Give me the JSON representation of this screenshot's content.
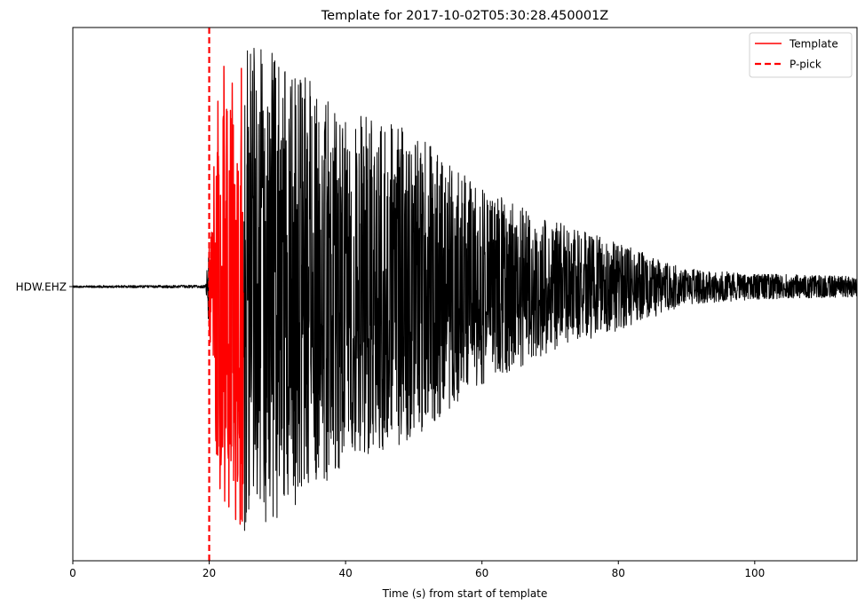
{
  "chart_data": {
    "type": "line",
    "title": "Template for 2017-10-02T05:30:28.450001Z",
    "xlabel": "Time (s) from start of template",
    "ylabel": "",
    "xlim": [
      0,
      115
    ],
    "x_ticks": [
      {
        "value": 0,
        "label": "0"
      },
      {
        "value": 20,
        "label": "20"
      },
      {
        "value": 40,
        "label": "40"
      },
      {
        "value": 60,
        "label": "60"
      },
      {
        "value": 80,
        "label": "80"
      },
      {
        "value": 100,
        "label": "100"
      }
    ],
    "y_ticks": [
      {
        "value": 0,
        "label": "HDW.EHZ"
      }
    ],
    "grid": false,
    "legend": {
      "position": "top-right",
      "entries": [
        {
          "label": "Template",
          "color": "#ff0000",
          "style": "solid"
        },
        {
          "label": "P-pick",
          "color": "#ff0000",
          "style": "dashed"
        }
      ]
    },
    "series": [
      {
        "type": "waveform",
        "station": "HDW.EHZ",
        "color": "#000000",
        "x_start": 0,
        "x_end": 115,
        "envelope": [
          {
            "t": 0,
            "amp": 0.004
          },
          {
            "t": 19.5,
            "amp": 0.006
          },
          {
            "t": 20.3,
            "amp": 0.3
          },
          {
            "t": 21.5,
            "amp": 0.85
          },
          {
            "t": 25,
            "amp": 0.95
          },
          {
            "t": 30,
            "amp": 0.9
          },
          {
            "t": 40,
            "amp": 0.7
          },
          {
            "t": 50,
            "amp": 0.6
          },
          {
            "t": 60,
            "amp": 0.38
          },
          {
            "t": 70,
            "amp": 0.26
          },
          {
            "t": 80,
            "amp": 0.17
          },
          {
            "t": 90,
            "amp": 0.07
          },
          {
            "t": 100,
            "amp": 0.05
          },
          {
            "t": 115,
            "amp": 0.04
          }
        ]
      },
      {
        "type": "waveform",
        "name": "Template",
        "color": "#ff0000",
        "x_start": 20,
        "x_end": 25
      }
    ],
    "vlines": [
      {
        "x": 20,
        "color": "#ff0000",
        "style": "dashed"
      }
    ]
  }
}
